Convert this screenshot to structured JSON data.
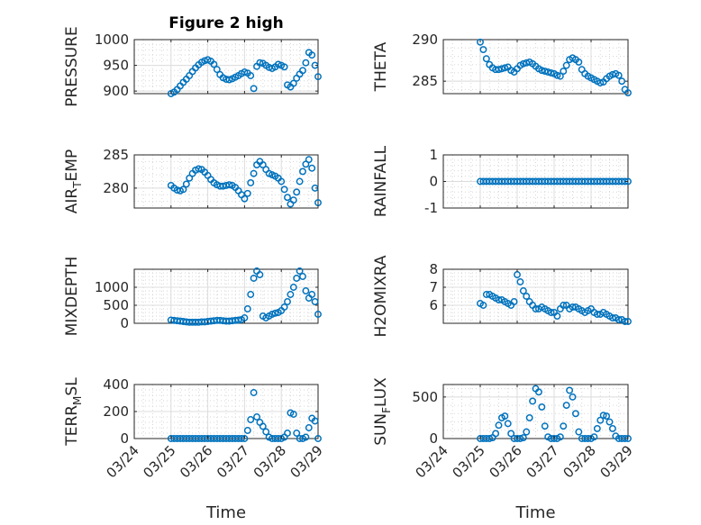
{
  "figure": {
    "title": "Figure 2 high",
    "xlabel": "Time",
    "date_ticks": [
      "03/24",
      "03/25",
      "03/26",
      "03/27",
      "03/28",
      "03/29"
    ],
    "marker_color": "#0072BD"
  },
  "chart_data": [
    {
      "type": "scatter",
      "title": "Figure 2 high",
      "ylabel": "PRESSURE",
      "xlim": [
        "03/24",
        "03/29"
      ],
      "ylim": [
        895,
        1000
      ],
      "yticks": [
        900,
        950,
        1000
      ],
      "grid": true,
      "x": [
        "03/25 00:00",
        "03/25 02:00",
        "03/25 04:00",
        "03/25 06:00",
        "03/25 08:00",
        "03/25 10:00",
        "03/25 12:00",
        "03/25 14:00",
        "03/25 16:00",
        "03/25 18:00",
        "03/25 20:00",
        "03/25 22:00",
        "03/26 00:00",
        "03/26 02:00",
        "03/26 04:00",
        "03/26 06:00",
        "03/26 08:00",
        "03/26 10:00",
        "03/26 12:00",
        "03/26 14:00",
        "03/26 16:00",
        "03/26 18:00",
        "03/26 20:00",
        "03/26 22:00",
        "03/27 00:00",
        "03/27 02:00",
        "03/27 04:00",
        "03/27 06:00",
        "03/27 08:00",
        "03/27 10:00",
        "03/27 12:00",
        "03/27 14:00",
        "03/27 16:00",
        "03/27 18:00",
        "03/27 20:00",
        "03/27 22:00",
        "03/28 00:00",
        "03/28 02:00",
        "03/28 04:00",
        "03/28 06:00",
        "03/28 08:00",
        "03/28 10:00",
        "03/28 12:00",
        "03/28 14:00",
        "03/28 16:00",
        "03/28 18:00",
        "03/28 20:00",
        "03/28 22:00",
        "03/29 00:00"
      ],
      "y": [
        895,
        898,
        903,
        910,
        917,
        923,
        930,
        938,
        945,
        951,
        956,
        959,
        961,
        958,
        952,
        942,
        932,
        926,
        923,
        922,
        924,
        927,
        930,
        934,
        937,
        935,
        930,
        905,
        948,
        955,
        954,
        950,
        946,
        944,
        947,
        952,
        950,
        947,
        912,
        908,
        915,
        925,
        933,
        940,
        955,
        975,
        970,
        950,
        928
      ]
    },
    {
      "type": "scatter",
      "ylabel": "THETA",
      "xlim": [
        "03/24",
        "03/29"
      ],
      "ylim": [
        283.5,
        290
      ],
      "yticks": [
        285,
        290
      ],
      "grid": true,
      "x": [
        "03/25 00:00",
        "03/25 02:00",
        "03/25 04:00",
        "03/25 06:00",
        "03/25 08:00",
        "03/25 10:00",
        "03/25 12:00",
        "03/25 14:00",
        "03/25 16:00",
        "03/25 18:00",
        "03/25 20:00",
        "03/25 22:00",
        "03/26 00:00",
        "03/26 02:00",
        "03/26 04:00",
        "03/26 06:00",
        "03/26 08:00",
        "03/26 10:00",
        "03/26 12:00",
        "03/26 14:00",
        "03/26 16:00",
        "03/26 18:00",
        "03/26 20:00",
        "03/26 22:00",
        "03/27 00:00",
        "03/27 02:00",
        "03/27 04:00",
        "03/27 06:00",
        "03/27 08:00",
        "03/27 10:00",
        "03/27 12:00",
        "03/27 14:00",
        "03/27 16:00",
        "03/27 18:00",
        "03/27 20:00",
        "03/27 22:00",
        "03/28 00:00",
        "03/28 02:00",
        "03/28 04:00",
        "03/28 06:00",
        "03/28 08:00",
        "03/28 10:00",
        "03/28 12:00",
        "03/28 14:00",
        "03/28 16:00",
        "03/28 18:00",
        "03/28 20:00",
        "03/28 22:00",
        "03/29 00:00"
      ],
      "y": [
        289.7,
        288.8,
        287.7,
        287.0,
        286.6,
        286.4,
        286.4,
        286.5,
        286.6,
        286.7,
        286.3,
        286.1,
        286.5,
        286.9,
        287.1,
        287.2,
        287.3,
        287.1,
        286.8,
        286.5,
        286.3,
        286.2,
        286.1,
        286.0,
        285.9,
        285.7,
        285.6,
        286.2,
        286.9,
        287.6,
        287.8,
        287.6,
        287.3,
        286.4,
        285.9,
        285.6,
        285.4,
        285.2,
        285.0,
        284.8,
        284.9,
        285.3,
        285.6,
        285.8,
        285.9,
        285.7,
        285.0,
        284.0,
        283.6
      ]
    },
    {
      "type": "scatter",
      "ylabel": "AIR_TEMP",
      "xlim": [
        "03/24",
        "03/29"
      ],
      "ylim": [
        277,
        285
      ],
      "yticks": [
        280,
        285
      ],
      "grid": true,
      "x": [
        "03/25 00:00",
        "03/25 02:00",
        "03/25 04:00",
        "03/25 06:00",
        "03/25 08:00",
        "03/25 10:00",
        "03/25 12:00",
        "03/25 14:00",
        "03/25 16:00",
        "03/25 18:00",
        "03/25 20:00",
        "03/25 22:00",
        "03/26 00:00",
        "03/26 02:00",
        "03/26 04:00",
        "03/26 06:00",
        "03/26 08:00",
        "03/26 10:00",
        "03/26 12:00",
        "03/26 14:00",
        "03/26 16:00",
        "03/26 18:00",
        "03/26 20:00",
        "03/26 22:00",
        "03/27 00:00",
        "03/27 02:00",
        "03/27 04:00",
        "03/27 06:00",
        "03/27 08:00",
        "03/27 10:00",
        "03/27 12:00",
        "03/27 14:00",
        "03/27 16:00",
        "03/27 18:00",
        "03/27 20:00",
        "03/27 22:00",
        "03/28 00:00",
        "03/28 02:00",
        "03/28 04:00",
        "03/28 06:00",
        "03/28 08:00",
        "03/28 10:00",
        "03/28 12:00",
        "03/28 14:00",
        "03/28 16:00",
        "03/28 18:00",
        "03/28 20:00",
        "03/28 22:00",
        "03/29 00:00"
      ],
      "y": [
        280.4,
        280.0,
        279.7,
        279.6,
        279.8,
        280.6,
        281.5,
        282.2,
        282.7,
        282.9,
        282.8,
        282.4,
        281.9,
        281.3,
        280.8,
        280.5,
        280.3,
        280.3,
        280.4,
        280.5,
        280.4,
        280.1,
        279.6,
        279.0,
        278.4,
        279.2,
        280.8,
        282.2,
        283.5,
        284.0,
        283.5,
        282.8,
        282.2,
        282.0,
        281.8,
        281.5,
        281.0,
        279.8,
        278.6,
        277.6,
        278.2,
        279.4,
        281.0,
        282.5,
        283.6,
        284.3,
        283.0,
        280.0,
        277.8
      ]
    },
    {
      "type": "scatter",
      "ylabel": "RAINFALL",
      "xlim": [
        "03/24",
        "03/29"
      ],
      "ylim": [
        -1,
        1
      ],
      "yticks": [
        -1,
        0,
        1
      ],
      "grid": true,
      "x": [
        "03/25 00:00",
        "03/25 02:00",
        "03/25 04:00",
        "03/25 06:00",
        "03/25 08:00",
        "03/25 10:00",
        "03/25 12:00",
        "03/25 14:00",
        "03/25 16:00",
        "03/25 18:00",
        "03/25 20:00",
        "03/25 22:00",
        "03/26 00:00",
        "03/26 02:00",
        "03/26 04:00",
        "03/26 06:00",
        "03/26 08:00",
        "03/26 10:00",
        "03/26 12:00",
        "03/26 14:00",
        "03/26 16:00",
        "03/26 18:00",
        "03/26 20:00",
        "03/26 22:00",
        "03/27 00:00",
        "03/27 02:00",
        "03/27 04:00",
        "03/27 06:00",
        "03/27 08:00",
        "03/27 10:00",
        "03/27 12:00",
        "03/27 14:00",
        "03/27 16:00",
        "03/27 18:00",
        "03/27 20:00",
        "03/27 22:00",
        "03/28 00:00",
        "03/28 02:00",
        "03/28 04:00",
        "03/28 06:00",
        "03/28 08:00",
        "03/28 10:00",
        "03/28 12:00",
        "03/28 14:00",
        "03/28 16:00",
        "03/28 18:00",
        "03/28 20:00",
        "03/28 22:00",
        "03/29 00:00"
      ],
      "y": [
        0,
        0,
        0,
        0,
        0,
        0,
        0,
        0,
        0,
        0,
        0,
        0,
        0,
        0,
        0,
        0,
        0,
        0,
        0,
        0,
        0,
        0,
        0,
        0,
        0,
        0,
        0,
        0,
        0,
        0,
        0,
        0,
        0,
        0,
        0,
        0,
        0,
        0,
        0,
        0,
        0,
        0,
        0,
        0,
        0,
        0,
        0,
        0,
        0
      ]
    },
    {
      "type": "scatter",
      "ylabel": "MIXDEPTH",
      "xlim": [
        "03/24",
        "03/29"
      ],
      "ylim": [
        0,
        1500
      ],
      "yticks": [
        0,
        500,
        1000
      ],
      "grid": true,
      "x": [
        "03/25 00:00",
        "03/25 02:00",
        "03/25 04:00",
        "03/25 06:00",
        "03/25 08:00",
        "03/25 10:00",
        "03/25 12:00",
        "03/25 14:00",
        "03/25 16:00",
        "03/25 18:00",
        "03/25 20:00",
        "03/25 22:00",
        "03/26 00:00",
        "03/26 02:00",
        "03/26 04:00",
        "03/26 06:00",
        "03/26 08:00",
        "03/26 10:00",
        "03/26 12:00",
        "03/26 14:00",
        "03/26 16:00",
        "03/26 18:00",
        "03/26 20:00",
        "03/26 22:00",
        "03/27 00:00",
        "03/27 02:00",
        "03/27 04:00",
        "03/27 06:00",
        "03/27 08:00",
        "03/27 10:00",
        "03/27 12:00",
        "03/27 14:00",
        "03/27 16:00",
        "03/27 18:00",
        "03/27 20:00",
        "03/27 22:00",
        "03/28 00:00",
        "03/28 02:00",
        "03/28 04:00",
        "03/28 06:00",
        "03/28 08:00",
        "03/28 10:00",
        "03/28 12:00",
        "03/28 14:00",
        "03/28 16:00",
        "03/28 18:00",
        "03/28 20:00",
        "03/28 22:00",
        "03/29 00:00"
      ],
      "y": [
        90,
        80,
        70,
        60,
        50,
        40,
        30,
        30,
        30,
        30,
        40,
        40,
        50,
        60,
        70,
        80,
        80,
        70,
        60,
        60,
        70,
        80,
        90,
        100,
        150,
        400,
        800,
        1250,
        1450,
        1350,
        200,
        150,
        200,
        250,
        280,
        300,
        350,
        450,
        600,
        800,
        1000,
        1250,
        1450,
        1300,
        900,
        700,
        800,
        600,
        250
      ]
    },
    {
      "type": "scatter",
      "ylabel": "H2OMIXRA",
      "xlim": [
        "03/24",
        "03/29"
      ],
      "ylim": [
        5.0,
        8.0
      ],
      "yticks": [
        6,
        7,
        8
      ],
      "grid": true,
      "x": [
        "03/25 00:00",
        "03/25 02:00",
        "03/25 04:00",
        "03/25 06:00",
        "03/25 08:00",
        "03/25 10:00",
        "03/25 12:00",
        "03/25 14:00",
        "03/25 16:00",
        "03/25 18:00",
        "03/25 20:00",
        "03/25 22:00",
        "03/26 00:00",
        "03/26 02:00",
        "03/26 04:00",
        "03/26 06:00",
        "03/26 08:00",
        "03/26 10:00",
        "03/26 12:00",
        "03/26 14:00",
        "03/26 16:00",
        "03/26 18:00",
        "03/26 20:00",
        "03/26 22:00",
        "03/27 00:00",
        "03/27 02:00",
        "03/27 04:00",
        "03/27 06:00",
        "03/27 08:00",
        "03/27 10:00",
        "03/27 12:00",
        "03/27 14:00",
        "03/27 16:00",
        "03/27 18:00",
        "03/27 20:00",
        "03/27 22:00",
        "03/28 00:00",
        "03/28 02:00",
        "03/28 04:00",
        "03/28 06:00",
        "03/28 08:00",
        "03/28 10:00",
        "03/28 12:00",
        "03/28 14:00",
        "03/28 16:00",
        "03/28 18:00",
        "03/28 20:00",
        "03/28 22:00",
        "03/29 00:00"
      ],
      "y": [
        6.1,
        6.0,
        6.6,
        6.6,
        6.5,
        6.4,
        6.3,
        6.3,
        6.2,
        6.1,
        6.0,
        6.2,
        7.7,
        7.3,
        6.8,
        6.5,
        6.2,
        6.0,
        5.8,
        5.8,
        5.9,
        5.8,
        5.7,
        5.6,
        5.6,
        5.4,
        5.8,
        6.0,
        6.0,
        5.8,
        5.9,
        5.9,
        5.8,
        5.7,
        5.6,
        5.7,
        5.8,
        5.6,
        5.5,
        5.5,
        5.6,
        5.5,
        5.4,
        5.3,
        5.3,
        5.2,
        5.2,
        5.1,
        5.1
      ]
    },
    {
      "type": "scatter",
      "ylabel": "TERR_MSL",
      "xlim": [
        "03/24",
        "03/29"
      ],
      "ylim": [
        0,
        400
      ],
      "yticks": [
        0,
        200,
        400
      ],
      "grid": true,
      "x": [
        "03/25 00:00",
        "03/25 02:00",
        "03/25 04:00",
        "03/25 06:00",
        "03/25 08:00",
        "03/25 10:00",
        "03/25 12:00",
        "03/25 14:00",
        "03/25 16:00",
        "03/25 18:00",
        "03/25 20:00",
        "03/25 22:00",
        "03/26 00:00",
        "03/26 02:00",
        "03/26 04:00",
        "03/26 06:00",
        "03/26 08:00",
        "03/26 10:00",
        "03/26 12:00",
        "03/26 14:00",
        "03/26 16:00",
        "03/26 18:00",
        "03/26 20:00",
        "03/26 22:00",
        "03/27 00:00",
        "03/27 02:00",
        "03/27 04:00",
        "03/27 06:00",
        "03/27 08:00",
        "03/27 10:00",
        "03/27 12:00",
        "03/27 14:00",
        "03/27 16:00",
        "03/27 18:00",
        "03/27 20:00",
        "03/27 22:00",
        "03/28 00:00",
        "03/28 02:00",
        "03/28 04:00",
        "03/28 06:00",
        "03/28 08:00",
        "03/28 10:00",
        "03/28 12:00",
        "03/28 14:00",
        "03/28 16:00",
        "03/28 18:00",
        "03/28 20:00",
        "03/28 22:00",
        "03/29 00:00"
      ],
      "y": [
        0,
        0,
        0,
        0,
        0,
        0,
        0,
        0,
        0,
        0,
        0,
        0,
        0,
        0,
        0,
        0,
        0,
        0,
        0,
        0,
        0,
        0,
        0,
        0,
        0,
        60,
        140,
        340,
        160,
        120,
        90,
        50,
        10,
        0,
        0,
        0,
        0,
        10,
        40,
        190,
        180,
        40,
        0,
        0,
        10,
        80,
        150,
        130,
        0
      ]
    },
    {
      "type": "scatter",
      "ylabel": "SUN_FLUX",
      "xlim": [
        "03/24",
        "03/29"
      ],
      "ylim": [
        0,
        650
      ],
      "yticks": [
        0,
        500
      ],
      "grid": true,
      "x": [
        "03/25 00:00",
        "03/25 02:00",
        "03/25 04:00",
        "03/25 06:00",
        "03/25 08:00",
        "03/25 10:00",
        "03/25 12:00",
        "03/25 14:00",
        "03/25 16:00",
        "03/25 18:00",
        "03/25 20:00",
        "03/25 22:00",
        "03/26 00:00",
        "03/26 02:00",
        "03/26 04:00",
        "03/26 06:00",
        "03/26 08:00",
        "03/26 10:00",
        "03/26 12:00",
        "03/26 14:00",
        "03/26 16:00",
        "03/26 18:00",
        "03/26 20:00",
        "03/26 22:00",
        "03/27 00:00",
        "03/27 02:00",
        "03/27 04:00",
        "03/27 06:00",
        "03/27 08:00",
        "03/27 10:00",
        "03/27 12:00",
        "03/27 14:00",
        "03/27 16:00",
        "03/27 18:00",
        "03/27 20:00",
        "03/27 22:00",
        "03/28 00:00",
        "03/28 02:00",
        "03/28 04:00",
        "03/28 06:00",
        "03/28 08:00",
        "03/28 10:00",
        "03/28 12:00",
        "03/28 14:00",
        "03/28 16:00",
        "03/28 18:00",
        "03/28 20:00",
        "03/28 22:00",
        "03/29 00:00"
      ],
      "y": [
        0,
        0,
        0,
        0,
        10,
        60,
        160,
        250,
        270,
        180,
        60,
        0,
        0,
        0,
        10,
        80,
        250,
        450,
        600,
        560,
        380,
        150,
        20,
        0,
        0,
        0,
        20,
        150,
        400,
        580,
        500,
        300,
        80,
        0,
        0,
        0,
        0,
        20,
        120,
        220,
        280,
        270,
        200,
        120,
        30,
        0,
        0,
        0,
        0
      ]
    }
  ]
}
